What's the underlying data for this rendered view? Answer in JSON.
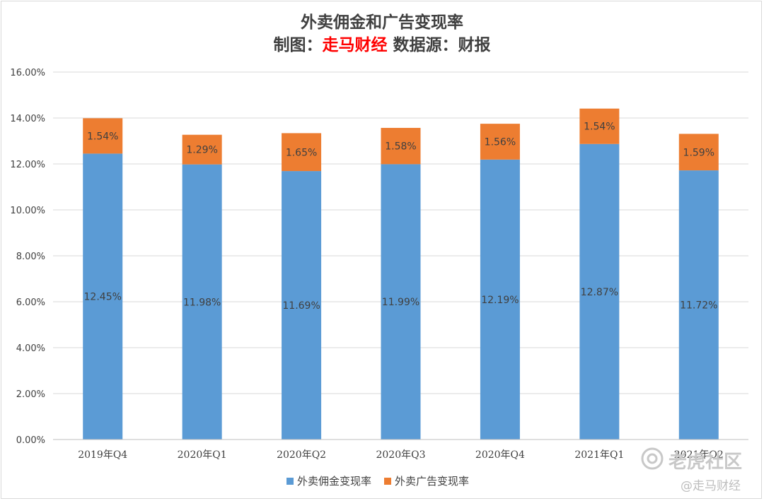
{
  "title": {
    "line1": "外卖佣金和广告变现率",
    "line2_prefix": "制图：",
    "line2_brand": "走马财经",
    "line2_suffix": " 数据源：财报"
  },
  "watermark": {
    "main": "老虎社区",
    "sub": "@走马财经"
  },
  "colors": {
    "commission": "#5b9bd5",
    "ads": "#ed7d31",
    "grid": "#d9d9d9",
    "text": "#404040",
    "brand_red": "#ff0000"
  },
  "chart_data": {
    "type": "bar",
    "stacked": true,
    "categories": [
      "2019年Q4",
      "2020年Q1",
      "2020年Q2",
      "2020年Q3",
      "2020年Q4",
      "2021年Q1",
      "2021年Q2"
    ],
    "series": [
      {
        "name": "外卖佣金变现率",
        "values": [
          12.45,
          11.98,
          11.69,
          11.99,
          12.19,
          12.87,
          11.72
        ],
        "labels": [
          "12.45%",
          "11.98%",
          "11.69%",
          "11.99%",
          "12.19%",
          "12.87%",
          "11.72%"
        ]
      },
      {
        "name": "外卖广告变现率",
        "values": [
          1.54,
          1.29,
          1.65,
          1.58,
          1.56,
          1.54,
          1.59
        ],
        "labels": [
          "1.54%",
          "1.29%",
          "1.65%",
          "1.58%",
          "1.56%",
          "1.54%",
          "1.59%"
        ]
      }
    ],
    "ylim": [
      0,
      16
    ],
    "yticks": [
      "0.00%",
      "2.00%",
      "4.00%",
      "6.00%",
      "8.00%",
      "10.00%",
      "12.00%",
      "14.00%",
      "16.00%"
    ],
    "grid": true,
    "legend": "bottom"
  }
}
